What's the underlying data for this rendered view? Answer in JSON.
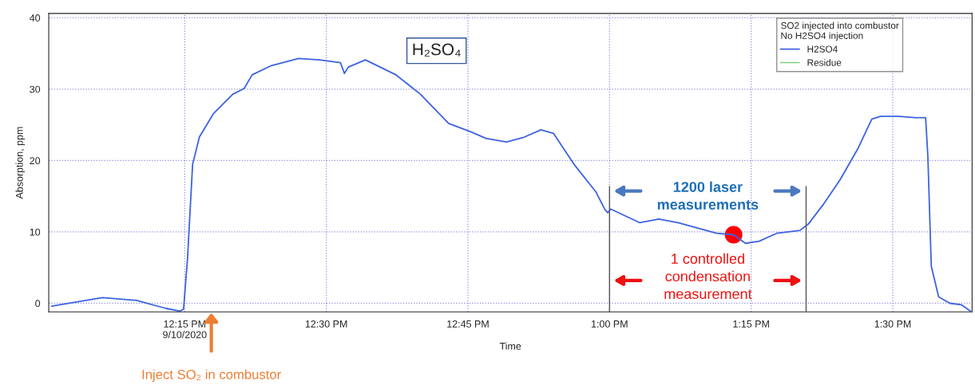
{
  "chart_data": {
    "type": "line",
    "xlabel": "Time",
    "ylabel": "Absorption, ppm",
    "legend_title": "SO2 injected into combustor\nNo H2SO4 injection",
    "x": [
      12.015,
      12.046,
      12.105,
      12.165,
      12.216,
      12.242,
      12.248,
      12.255,
      12.264,
      12.276,
      12.301,
      12.335,
      12.355,
      12.369,
      12.403,
      12.451,
      12.488,
      12.525,
      12.532,
      12.539,
      12.569,
      12.623,
      12.666,
      12.716,
      12.756,
      12.782,
      12.818,
      12.847,
      12.879,
      12.901,
      12.937,
      12.976,
      12.992,
      12.997,
      13.002,
      13.053,
      13.087,
      13.121,
      13.189,
      13.219,
      13.24,
      13.264,
      13.295,
      13.336,
      13.351,
      13.377,
      13.407,
      13.438,
      13.463,
      13.479,
      13.509,
      13.54,
      13.558,
      13.562,
      13.568,
      13.581,
      13.601,
      13.621,
      13.637
    ],
    "series": [
      {
        "name": "H2SO4",
        "color": "#3d63e0",
        "values": [
          -0.4,
          0,
          0.8,
          0.4,
          -0.7,
          -1.1,
          -0.8,
          6.3,
          19.5,
          23.3,
          26.6,
          29.3,
          30.1,
          32,
          33.3,
          34.3,
          34.1,
          33.7,
          32.2,
          33.1,
          34.1,
          32,
          29.3,
          25.2,
          24,
          23.1,
          22.6,
          23.2,
          24.3,
          23.8,
          19.5,
          15.6,
          13.1,
          12.7,
          13.2,
          11.3,
          11.8,
          11.3,
          9.8,
          9.6,
          8.4,
          8.7,
          9.8,
          10.2,
          11.1,
          13.8,
          17.3,
          21.6,
          25.8,
          26.2,
          26.2,
          26,
          26,
          20.5,
          5.2,
          0.9,
          0,
          -0.2,
          -1.1
        ]
      },
      {
        "name": "Residue",
        "color": "#7ccf7c",
        "values": [
          null,
          null,
          null,
          null,
          null,
          null,
          null,
          null,
          null,
          null,
          null,
          null,
          null,
          null,
          null,
          null,
          null,
          null,
          null,
          null,
          null,
          null,
          null,
          null,
          null,
          null,
          null,
          null,
          null,
          null,
          null,
          null,
          null,
          null,
          null,
          null,
          null,
          null,
          null,
          null,
          null,
          null,
          null,
          null,
          null,
          null,
          null,
          null,
          null,
          null,
          null,
          null,
          null,
          null,
          null,
          null,
          null,
          null,
          null
        ]
      },
      {
        "type": "scatter",
        "color": "#ff0000",
        "marker": "circle",
        "x": [
          13.219
        ],
        "values": [
          9.6
        ]
      }
    ],
    "xlim": [
      12.01,
      13.64
    ],
    "xticks": [
      {
        "value": 12.25,
        "label": "12:15 PM\n9/10/2020"
      },
      {
        "value": 12.5,
        "label": "12:30 PM"
      },
      {
        "value": 12.75,
        "label": "12:45 PM"
      },
      {
        "value": 13.0,
        "label": "1:00 PM"
      },
      {
        "value": 13.25,
        "label": "1:15 PM"
      },
      {
        "value": 13.5,
        "label": "1:30 PM"
      }
    ],
    "ylim": [
      -1.2,
      40.6
    ],
    "yticks": [
      0,
      10,
      20,
      30,
      40
    ],
    "ref_lines": [
      {
        "axis": "x",
        "value": 13.0,
        "color": "#555555"
      },
      {
        "axis": "x",
        "value": 13.347,
        "color": "#555555"
      }
    ],
    "annotations": [
      "H₂SO₄",
      "1200 laser\nmeasurements",
      "1 controlled\ncondensation\nmeasurement",
      "Inject SO₂ in combustor"
    ],
    "grid": true,
    "legend": "top right",
    "line_style": "solid"
  }
}
